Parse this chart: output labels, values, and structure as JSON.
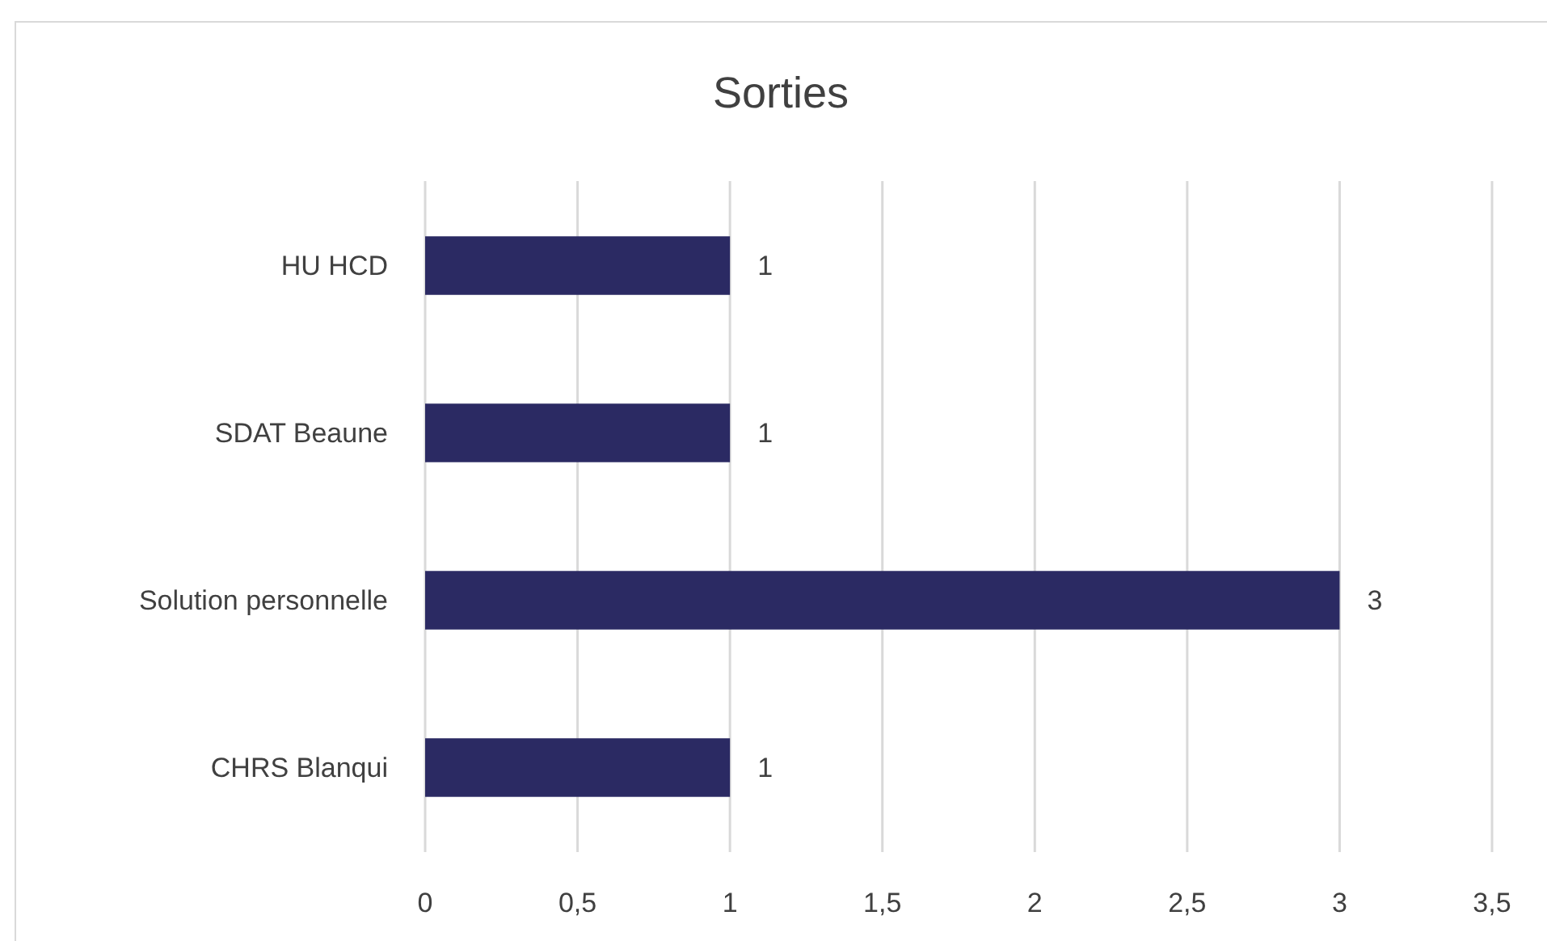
{
  "chart_data": {
    "type": "bar",
    "title": "Sorties",
    "orientation": "horizontal",
    "categories": [
      "HU HCD",
      "SDAT Beaune",
      "Solution personnelle",
      "CHRS Blanqui"
    ],
    "values": [
      1,
      1,
      3,
      1
    ],
    "color": "#2b2a63",
    "xlim": [
      0,
      3.5
    ],
    "xticks": [
      0,
      {
        "value": 0.5,
        "label": "0,5"
      },
      1,
      {
        "value": 1.5,
        "label": "1,5"
      },
      2,
      {
        "value": 2.5,
        "label": "2,5"
      },
      3,
      {
        "value": 3.5,
        "label": "3,5"
      }
    ],
    "grid": "x",
    "data_labels": true
  }
}
